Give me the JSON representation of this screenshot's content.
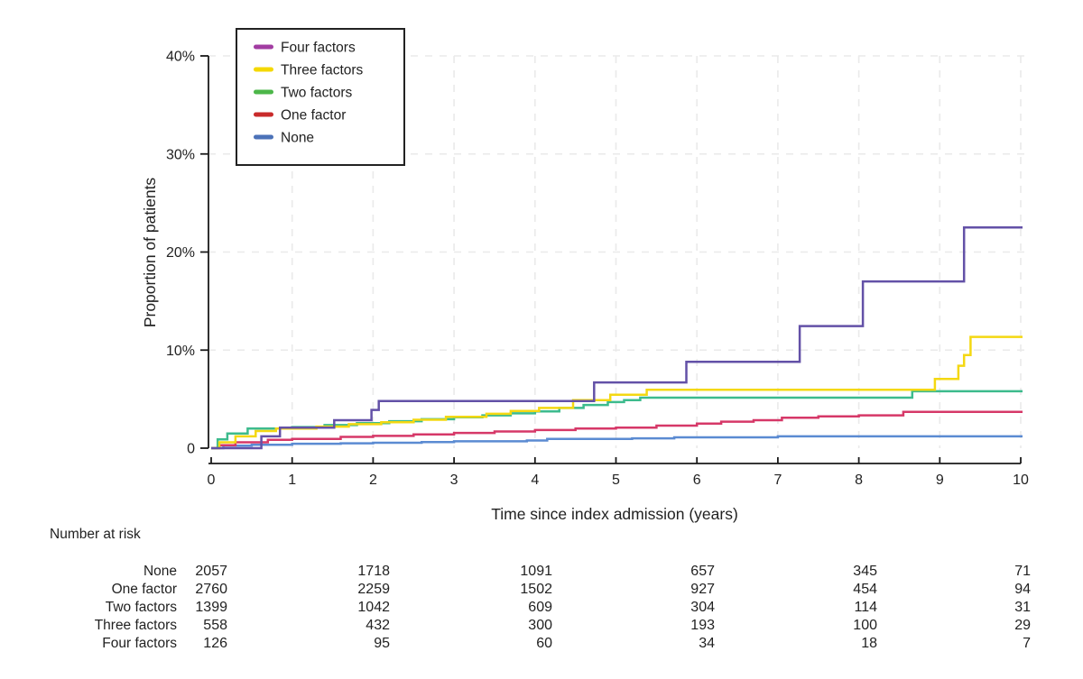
{
  "chart_data": {
    "type": "line",
    "subtype": "step-survival-cumulative-incidence",
    "title": "",
    "xlabel": "Time since index admission (years)",
    "ylabel": "Proportion of patients",
    "xlim": [
      0,
      10
    ],
    "ylim": [
      0,
      40
    ],
    "x_ticks": [
      0,
      1,
      2,
      3,
      4,
      5,
      6,
      7,
      8,
      9,
      10
    ],
    "y_ticks": [
      {
        "value": 0,
        "label": "0"
      },
      {
        "value": 10,
        "label": "10%"
      },
      {
        "value": 20,
        "label": "20%"
      },
      {
        "value": 30,
        "label": "30%"
      },
      {
        "value": 40,
        "label": "40%"
      }
    ],
    "grid": {
      "horizontal": true,
      "vertical": true,
      "style": "dashed",
      "color": "#eaeaea"
    },
    "legend_position": "top-left-inside",
    "legend_order": [
      "Four factors",
      "Three factors",
      "Two factors",
      "One factor",
      "None"
    ],
    "axis_color": "#1a1a1a",
    "series": [
      {
        "name": "None",
        "line_color": "#5b8bd2",
        "legend_color": "#4c72b8",
        "points": [
          [
            0,
            0
          ],
          [
            0.15,
            0.25
          ],
          [
            0.5,
            0.35
          ],
          [
            1,
            0.45
          ],
          [
            1.6,
            0.5
          ],
          [
            2,
            0.55
          ],
          [
            2.6,
            0.62
          ],
          [
            3,
            0.7
          ],
          [
            3.9,
            0.78
          ],
          [
            4.15,
            0.95
          ],
          [
            5.2,
            1.0
          ],
          [
            5.72,
            1.1
          ],
          [
            7.0,
            1.2
          ],
          [
            10,
            1.2
          ]
        ]
      },
      {
        "name": "One factor",
        "line_color": "#d63868",
        "legend_color": "#c92b2b",
        "points": [
          [
            0,
            0
          ],
          [
            0.1,
            0.3
          ],
          [
            0.3,
            0.6
          ],
          [
            0.7,
            0.85
          ],
          [
            1,
            0.95
          ],
          [
            1.6,
            1.15
          ],
          [
            2,
            1.25
          ],
          [
            2.5,
            1.4
          ],
          [
            3,
            1.55
          ],
          [
            3.5,
            1.7
          ],
          [
            4,
            1.85
          ],
          [
            4.5,
            2.0
          ],
          [
            5,
            2.1
          ],
          [
            5.5,
            2.3
          ],
          [
            6,
            2.5
          ],
          [
            6.3,
            2.7
          ],
          [
            6.7,
            2.85
          ],
          [
            7.05,
            3.1
          ],
          [
            7.5,
            3.25
          ],
          [
            8.0,
            3.35
          ],
          [
            8.55,
            3.7
          ],
          [
            10,
            3.7
          ]
        ]
      },
      {
        "name": "Two factors",
        "line_color": "#3dbb8d",
        "legend_color": "#4cb749",
        "points": [
          [
            0,
            0
          ],
          [
            0.08,
            0.9
          ],
          [
            0.2,
            1.5
          ],
          [
            0.45,
            2.0
          ],
          [
            1.0,
            2.15
          ],
          [
            1.4,
            2.35
          ],
          [
            1.8,
            2.55
          ],
          [
            2.2,
            2.75
          ],
          [
            2.6,
            2.95
          ],
          [
            3.0,
            3.15
          ],
          [
            3.35,
            3.35
          ],
          [
            3.7,
            3.55
          ],
          [
            4.0,
            3.75
          ],
          [
            4.3,
            4.1
          ],
          [
            4.6,
            4.4
          ],
          [
            4.9,
            4.7
          ],
          [
            5.1,
            4.9
          ],
          [
            5.3,
            5.15
          ],
          [
            8.66,
            5.8
          ],
          [
            10,
            5.8
          ]
        ]
      },
      {
        "name": "Three factors",
        "line_color": "#f4d812",
        "legend_color": "#f4d800",
        "points": [
          [
            0,
            0
          ],
          [
            0.1,
            0.6
          ],
          [
            0.3,
            1.2
          ],
          [
            0.55,
            1.75
          ],
          [
            0.8,
            2.0
          ],
          [
            1.3,
            2.2
          ],
          [
            1.7,
            2.45
          ],
          [
            2.1,
            2.65
          ],
          [
            2.5,
            2.9
          ],
          [
            2.9,
            3.2
          ],
          [
            3.4,
            3.5
          ],
          [
            3.7,
            3.8
          ],
          [
            4.05,
            4.1
          ],
          [
            4.47,
            4.9
          ],
          [
            4.93,
            5.45
          ],
          [
            5.38,
            5.95
          ],
          [
            8.94,
            7.05
          ],
          [
            9.23,
            8.4
          ],
          [
            9.3,
            9.5
          ],
          [
            9.38,
            11.35
          ],
          [
            10,
            11.35
          ]
        ]
      },
      {
        "name": "Four factors",
        "line_color": "#6351a7",
        "legend_color": "#a23da2",
        "points": [
          [
            0,
            0
          ],
          [
            0.62,
            1.2
          ],
          [
            0.85,
            2.1
          ],
          [
            1.52,
            2.85
          ],
          [
            1.98,
            3.9
          ],
          [
            2.07,
            4.8
          ],
          [
            4.73,
            6.7
          ],
          [
            5.87,
            8.8
          ],
          [
            7.27,
            12.45
          ],
          [
            8.05,
            17.0
          ],
          [
            9.3,
            22.5
          ],
          [
            10,
            22.5
          ]
        ]
      }
    ]
  },
  "at_risk_table": {
    "title": "Number at risk",
    "time_points": [
      0,
      2,
      4,
      6,
      8,
      10
    ],
    "rows": [
      {
        "label": "None",
        "values": [
          "2057",
          "1718",
          "1091",
          "657",
          "345",
          "71"
        ]
      },
      {
        "label": "One factor",
        "values": [
          "2760",
          "2259",
          "1502",
          "927",
          "454",
          "94"
        ]
      },
      {
        "label": "Two factors",
        "values": [
          "1399",
          "1042",
          "609",
          "304",
          "114",
          "31"
        ]
      },
      {
        "label": "Three factors",
        "values": [
          "558",
          "432",
          "300",
          "193",
          "100",
          "29"
        ]
      },
      {
        "label": "Four factors",
        "values": [
          "126",
          "95",
          "60",
          "34",
          "18",
          "7"
        ]
      }
    ]
  }
}
